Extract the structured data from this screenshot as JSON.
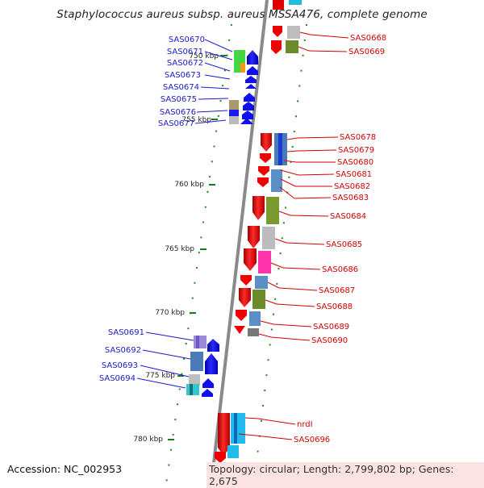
{
  "title": "Staphylococcus aureus subsp. aureus MSSA476, complete genome",
  "accession": "Accession: NC_002953",
  "topology": "Topology: circular; Length: 2,799,802 bp; Genes: 2,675",
  "kbp_labels": [
    "750 kbp",
    "755 kbp",
    "760 kbp",
    "765 kbp",
    "770 kbp",
    "775 kbp",
    "780 kbp"
  ],
  "left_genes": [
    "SAS0670",
    "SAS0671",
    "SAS0672",
    "SAS0673",
    "SAS0674",
    "SAS0675",
    "SAS0676",
    "SAS0677",
    "SAS0691",
    "SAS0692",
    "SAS0693",
    "SAS0694"
  ],
  "right_genes": [
    "SAS0668",
    "SAS0669",
    "SAS0678",
    "SAS0679",
    "SAS0680",
    "SAS0681",
    "SAS0682",
    "SAS0683",
    "SAS0684",
    "SAS0685",
    "SAS0686",
    "SAS0687",
    "SAS0688",
    "SAS0689",
    "SAS0690",
    "nrdI",
    "SAS0696"
  ],
  "colors": {
    "forward_label": "#1a1acc",
    "reverse_label": "#d40000",
    "forward_arrow": "#0000ee",
    "reverse_arrow": "#ee0000",
    "backbone": "#888888",
    "tick": "#1a8a1a"
  }
}
